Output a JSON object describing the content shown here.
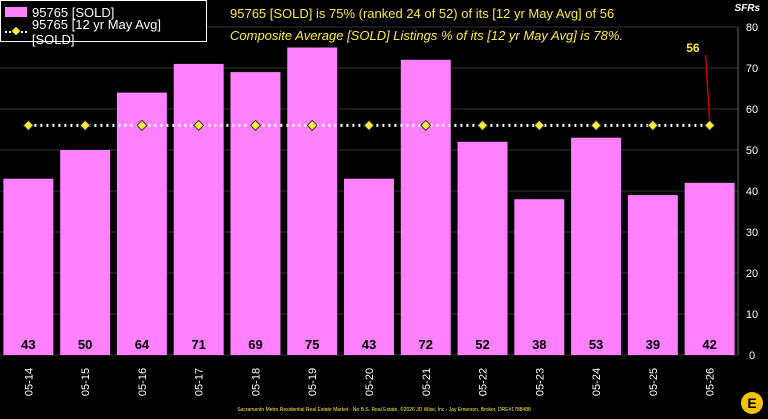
{
  "chart_data": {
    "type": "bar",
    "categories": [
      "05-14",
      "05-15",
      "05-16",
      "05-17",
      "05-18",
      "05-19",
      "05-20",
      "05-21",
      "05-22",
      "05-23",
      "05-24",
      "05-25",
      "05-26"
    ],
    "series": [
      {
        "name": "95765 [SOLD]",
        "type": "bar",
        "values": [
          43,
          50,
          64,
          71,
          69,
          75,
          43,
          72,
          52,
          38,
          53,
          39,
          42
        ]
      },
      {
        "name": "95765 [12 yr May Avg] [SOLD]",
        "type": "line",
        "values": [
          56,
          56,
          56,
          56,
          56,
          56,
          56,
          56,
          56,
          56,
          56,
          56,
          56
        ]
      }
    ],
    "title": "95765 [SOLD] is 75% (ranked 24 of 52) of its [12 yr May Avg] of 56",
    "subtitle": "Composite Average [SOLD] Listings % of its [12 yr May Avg] is 78%.",
    "ylabel": "SFRs",
    "ylim": [
      0,
      80
    ],
    "yticks": [
      0,
      10,
      20,
      30,
      40,
      50,
      60,
      70,
      80
    ],
    "avg_callout": "56",
    "grid": true,
    "legend_position": "top-left",
    "colors": {
      "bar": "#ff80ff",
      "avg_line": "#ffffff",
      "avg_marker": "#ffeb3b",
      "callout": "#cc0000",
      "text": "#ffeb3b"
    }
  },
  "footer": "Sacramento Metro Residential Real Estate Market - No B.S. Real Estate, ©2026 JD Wise, Inc - Jay Emerson, Broker, DRE#1788488",
  "logo_letter": "E"
}
